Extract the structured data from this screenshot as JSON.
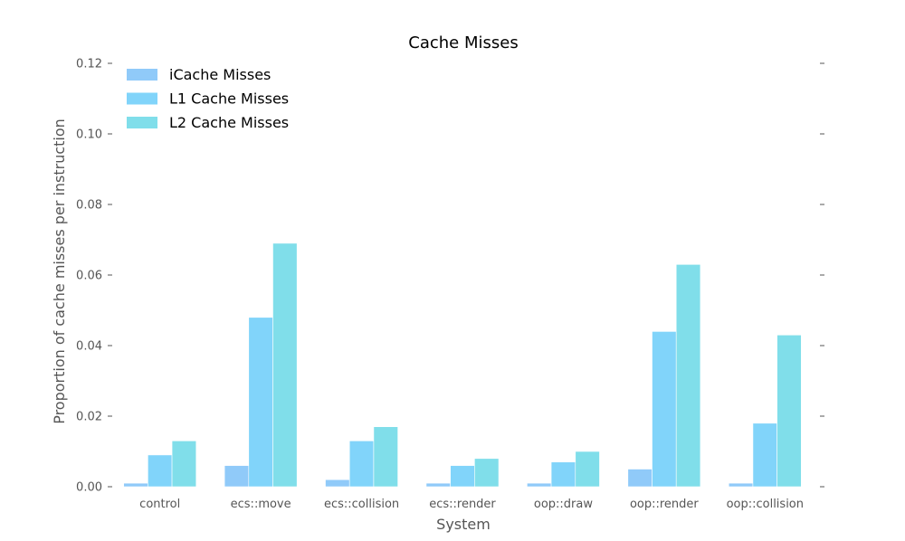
{
  "chart_data": {
    "type": "bar",
    "title": "Cache Misses",
    "xlabel": "System",
    "ylabel": "Proportion of cache misses per instruction",
    "ylim": [
      0,
      0.12
    ],
    "yticks": [
      "0.00",
      "0.02",
      "0.04",
      "0.06",
      "0.08",
      "0.10",
      "0.12"
    ],
    "categories": [
      "control",
      "ecs::move",
      "ecs::collision",
      "ecs::render",
      "oop::draw",
      "oop::render",
      "oop::collision"
    ],
    "series": [
      {
        "name": "iCache Misses",
        "color": "#90caf9",
        "values": [
          0.001,
          0.006,
          0.002,
          0.001,
          0.001,
          0.005,
          0.001
        ]
      },
      {
        "name": "L1 Cache Misses",
        "color": "#81d4fa",
        "values": [
          0.009,
          0.048,
          0.013,
          0.006,
          0.007,
          0.044,
          0.018
        ]
      },
      {
        "name": "L2 Cache Misses",
        "color": "#80deea",
        "values": [
          0.013,
          0.069,
          0.017,
          0.008,
          0.01,
          0.063,
          0.043
        ]
      }
    ],
    "grid": false,
    "legend": "top-left"
  }
}
